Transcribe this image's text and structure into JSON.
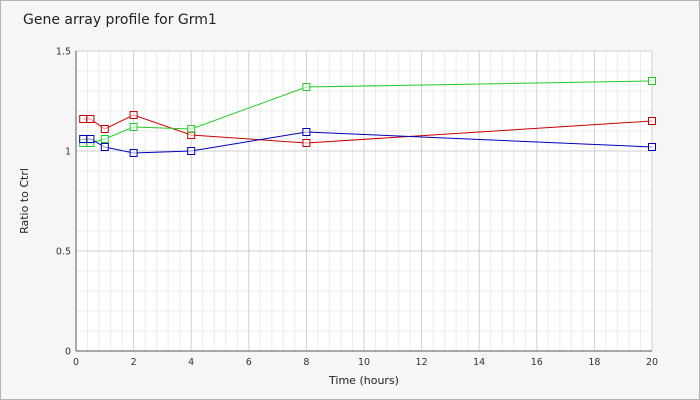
{
  "chart_data": {
    "type": "line",
    "title": "Gene array profile for Grm1",
    "xlabel": "Time (hours)",
    "ylabel": "Ratio to Ctrl",
    "xlim": [
      0,
      20
    ],
    "ylim": [
      0,
      1.5
    ],
    "xticks": [
      0,
      2,
      4,
      6,
      8,
      10,
      12,
      14,
      16,
      18,
      20
    ],
    "yticks": [
      0,
      0.5,
      1,
      1.5
    ],
    "ytick_labels": [
      "0",
      "0.5",
      "1",
      "1.5"
    ],
    "grid": true,
    "marker": "square",
    "series": [
      {
        "color": "#cc0000",
        "x": [
          0.25,
          0.5,
          1,
          2,
          4,
          8,
          20
        ],
        "y": [
          1.16,
          1.16,
          1.11,
          1.18,
          1.08,
          1.04,
          1.15
        ]
      },
      {
        "color": "#22cc22",
        "x": [
          0.25,
          0.5,
          1,
          2,
          4,
          8,
          20
        ],
        "y": [
          1.04,
          1.04,
          1.06,
          1.12,
          1.11,
          1.32,
          1.35
        ]
      },
      {
        "color": "#0000bb",
        "x": [
          0.25,
          0.5,
          1,
          2,
          4,
          8,
          20
        ],
        "y": [
          1.06,
          1.06,
          1.02,
          0.99,
          1.0,
          1.095,
          1.02
        ]
      }
    ]
  }
}
